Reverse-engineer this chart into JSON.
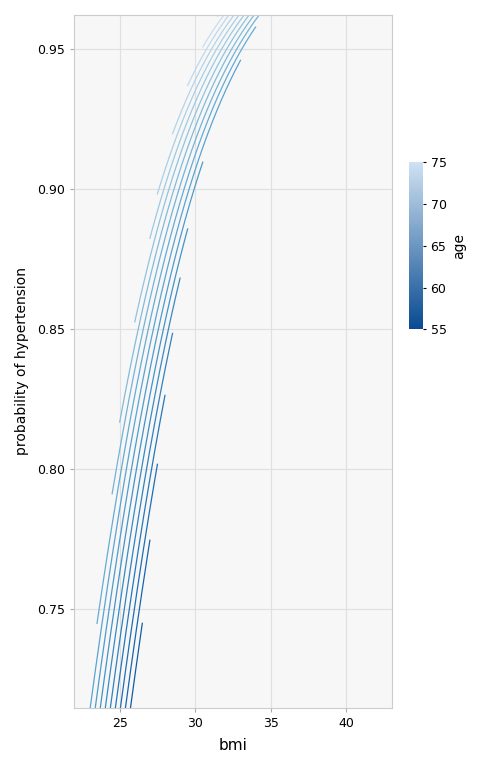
{
  "title": "",
  "xlabel": "bmi",
  "ylabel": "probability of hypertension",
  "bmi_min": 22,
  "bmi_max": 43,
  "age_min": 55,
  "age_max": 75,
  "age_step": 1,
  "logit_intercept": -7.8,
  "logit_bmi_coef": 0.195,
  "logit_age_coef": 0.065,
  "xlim": [
    22,
    43
  ],
  "ylim": [
    0.715,
    0.962
  ],
  "xticks": [
    25,
    30,
    35,
    40
  ],
  "yticks": [
    0.75,
    0.8,
    0.85,
    0.9,
    0.95
  ],
  "cmap": "Blues",
  "cbar_label": "age",
  "cbar_ticks": [
    55,
    60,
    65,
    70,
    75
  ],
  "background_color": "#ffffff",
  "panel_color": "#f7f7f7",
  "grid_color": "#e0e0e0",
  "line_width": 0.9,
  "bmi_end_per_age": {
    "55": 25.5,
    "56": 26.0,
    "57": 26.5,
    "58": 27.0,
    "59": 27.5,
    "60": 28.0,
    "61": 28.5,
    "62": 29.0,
    "63": 29.5,
    "64": 30.5,
    "65": 33.0,
    "66": 34.0,
    "67": 35.0,
    "68": 36.5,
    "69": 38.0,
    "70": 39.5,
    "71": 40.5,
    "72": 41.5,
    "73": 42.5,
    "74": 43.0,
    "75": 43.0
  },
  "bmi_start_per_age": {
    "55": 22.5,
    "56": 22.5,
    "57": 22.5,
    "58": 22.5,
    "59": 22.5,
    "60": 22.5,
    "61": 22.5,
    "62": 22.5,
    "63": 22.5,
    "64": 22.5,
    "65": 23.0,
    "66": 23.5,
    "67": 24.5,
    "68": 25.0,
    "69": 26.0,
    "70": 27.0,
    "71": 27.5,
    "72": 28.5,
    "73": 29.5,
    "74": 30.5,
    "75": 31.5
  }
}
